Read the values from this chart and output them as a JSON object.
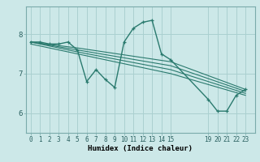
{
  "title": "",
  "xlabel": "Humidex (Indice chaleur)",
  "ylabel": "",
  "bg_color": "#cce8e8",
  "line_color": "#2a7a6e",
  "grid_color": "#aad0d0",
  "xticks": [
    0,
    1,
    2,
    3,
    4,
    5,
    6,
    7,
    8,
    9,
    10,
    11,
    12,
    13,
    14,
    15,
    19,
    20,
    21,
    22,
    23
  ],
  "yticks": [
    6,
    7,
    8
  ],
  "ylim": [
    5.5,
    8.7
  ],
  "xlim": [
    -0.5,
    24.0
  ],
  "series": [
    {
      "x": [
        0,
        1,
        2,
        3,
        4,
        5,
        6,
        7,
        8,
        9,
        10,
        11,
        12,
        13,
        14,
        15,
        19,
        20,
        21,
        22,
        23
      ],
      "y": [
        7.8,
        7.8,
        7.75,
        7.75,
        7.8,
        7.6,
        6.8,
        7.1,
        6.85,
        6.65,
        7.8,
        8.15,
        8.3,
        8.35,
        7.5,
        7.35,
        6.35,
        6.05,
        6.05,
        6.45,
        6.6
      ],
      "marker": true,
      "linewidth": 1.0
    },
    {
      "x": [
        0,
        5,
        15,
        23
      ],
      "y": [
        7.8,
        7.65,
        7.3,
        6.6
      ],
      "marker": false,
      "linewidth": 0.8
    },
    {
      "x": [
        0,
        5,
        15,
        23
      ],
      "y": [
        7.8,
        7.6,
        7.2,
        6.55
      ],
      "marker": false,
      "linewidth": 0.8
    },
    {
      "x": [
        0,
        5,
        15,
        23
      ],
      "y": [
        7.8,
        7.55,
        7.1,
        6.5
      ],
      "marker": false,
      "linewidth": 0.8
    },
    {
      "x": [
        0,
        5,
        15,
        23
      ],
      "y": [
        7.75,
        7.5,
        7.0,
        6.45
      ],
      "marker": false,
      "linewidth": 0.8
    }
  ]
}
